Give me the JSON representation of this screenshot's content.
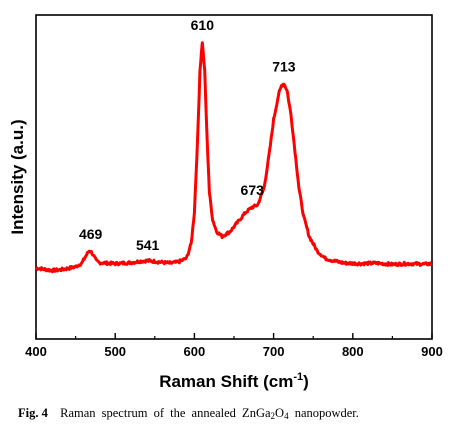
{
  "chart_data": {
    "type": "line",
    "xlabel": "Raman Shift (cm",
    "xlabel_sup": "-1",
    "xlabel_close": ")",
    "ylabel": "Intensity (a.u.)",
    "xlim": [
      400,
      900
    ],
    "ylim": [
      0,
      1
    ],
    "x_ticks": [
      "400",
      "500",
      "600",
      "700",
      "800",
      "900"
    ],
    "line_color": "#ff0000",
    "grid": false,
    "y_tick_labels": false,
    "peaks": [
      {
        "label": "469",
        "x": 469,
        "y": 0.14
      },
      {
        "label": "541",
        "x": 541,
        "y": 0.095
      },
      {
        "label": "610",
        "x": 610,
        "y": 1.0
      },
      {
        "label": "673",
        "x": 673,
        "y": 0.32
      },
      {
        "label": "713",
        "x": 713,
        "y": 0.83
      }
    ],
    "series": [
      {
        "points": [
          [
            400,
            0.07
          ],
          [
            410,
            0.065
          ],
          [
            420,
            0.06
          ],
          [
            430,
            0.062
          ],
          [
            440,
            0.068
          ],
          [
            450,
            0.075
          ],
          [
            458,
            0.09
          ],
          [
            463,
            0.12
          ],
          [
            467,
            0.14
          ],
          [
            469,
            0.14
          ],
          [
            472,
            0.125
          ],
          [
            476,
            0.1
          ],
          [
            480,
            0.092
          ],
          [
            490,
            0.09
          ],
          [
            500,
            0.088
          ],
          [
            510,
            0.09
          ],
          [
            520,
            0.092
          ],
          [
            530,
            0.097
          ],
          [
            541,
            0.1
          ],
          [
            550,
            0.097
          ],
          [
            560,
            0.093
          ],
          [
            570,
            0.09
          ],
          [
            580,
            0.095
          ],
          [
            590,
            0.11
          ],
          [
            596,
            0.17
          ],
          [
            600,
            0.3
          ],
          [
            604,
            0.6
          ],
          [
            607,
            0.88
          ],
          [
            610,
            1.0
          ],
          [
            613,
            0.88
          ],
          [
            616,
            0.6
          ],
          [
            619,
            0.38
          ],
          [
            623,
            0.27
          ],
          [
            628,
            0.22
          ],
          [
            635,
            0.2
          ],
          [
            645,
            0.22
          ],
          [
            655,
            0.26
          ],
          [
            665,
            0.3
          ],
          [
            673,
            0.32
          ],
          [
            680,
            0.33
          ],
          [
            688,
            0.4
          ],
          [
            695,
            0.55
          ],
          [
            700,
            0.68
          ],
          [
            706,
            0.78
          ],
          [
            710,
            0.82
          ],
          [
            713,
            0.83
          ],
          [
            717,
            0.8
          ],
          [
            722,
            0.7
          ],
          [
            727,
            0.55
          ],
          [
            732,
            0.4
          ],
          [
            738,
            0.28
          ],
          [
            745,
            0.2
          ],
          [
            755,
            0.14
          ],
          [
            765,
            0.11
          ],
          [
            775,
            0.1
          ],
          [
            790,
            0.09
          ],
          [
            810,
            0.088
          ],
          [
            830,
            0.09
          ],
          [
            850,
            0.085
          ],
          [
            870,
            0.088
          ],
          [
            890,
            0.086
          ],
          [
            900,
            0.087
          ]
        ]
      }
    ]
  },
  "caption": {
    "fig_label": "Fig. 4",
    "text_before": "Raman spectrum of the annealed ZnGa",
    "sub1": "2",
    "text_mid": "O",
    "sub2": "4",
    "text_after": " nanopowder."
  }
}
